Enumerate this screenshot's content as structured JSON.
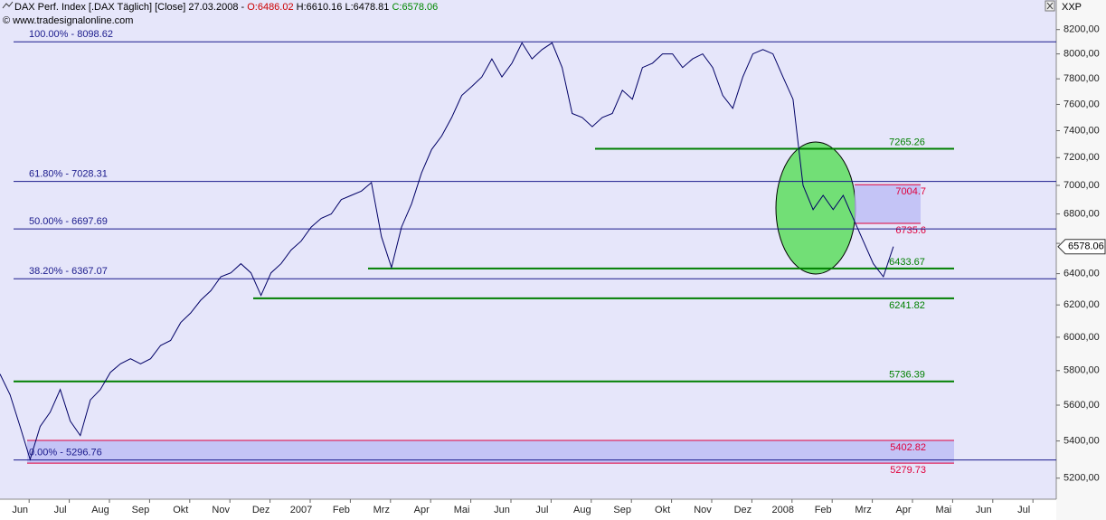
{
  "chart_data": {
    "type": "line",
    "title": "DAX Perf. Index [.DAX Täglich] [Close] 27.03.2008 -",
    "ohlc": [
      {
        "text": "O:6486.02",
        "color": "#cc0000"
      },
      {
        "text": "H:6610.16",
        "color": "#000000"
      },
      {
        "text": "L:6478.81",
        "color": "#000000"
      },
      {
        "text": "C:6578.06",
        "color": "#008800"
      }
    ],
    "watermark": "© www.tradesignalonline.com",
    "axis_unit": "XXP",
    "price_tag": 6578.06,
    "log_scale": true,
    "color": "#000066",
    "categories": [
      null,
      null,
      "Jun",
      null,
      null,
      null,
      "Jul",
      null,
      null,
      null,
      "Aug",
      null,
      null,
      null,
      "Sep",
      null,
      null,
      null,
      "Okt",
      null,
      null,
      null,
      "Nov",
      null,
      null,
      null,
      "Dez",
      null,
      null,
      null,
      "2007",
      null,
      null,
      null,
      "Feb",
      null,
      null,
      null,
      "Mrz",
      null,
      null,
      null,
      "Apr",
      null,
      null,
      null,
      "Mai",
      null,
      null,
      null,
      "Jun",
      null,
      null,
      null,
      "Jul",
      null,
      null,
      null,
      "Aug",
      null,
      null,
      null,
      "Sep",
      null,
      null,
      null,
      "Okt",
      null,
      null,
      null,
      "Nov",
      null,
      null,
      null,
      "Dez",
      null,
      null,
      null,
      "2008",
      null,
      null,
      null,
      "Feb",
      null,
      null,
      null,
      "Mrz",
      null,
      null,
      null,
      "Apr",
      null,
      null,
      null,
      "Mai",
      null,
      null,
      null,
      "Jun",
      null,
      null,
      null,
      "Jul",
      null,
      null,
      null
    ],
    "values": [
      5780,
      5660,
      5480,
      5300,
      5480,
      5560,
      5690,
      5510,
      5430,
      5630,
      5690,
      5790,
      5840,
      5870,
      5840,
      5870,
      5950,
      5980,
      6090,
      6150,
      6230,
      6290,
      6380,
      6405,
      6465,
      6405,
      6260,
      6405,
      6465,
      6555,
      6615,
      6710,
      6770,
      6800,
      6900,
      6930,
      6960,
      7020,
      6645,
      6440,
      6710,
      6870,
      7090,
      7260,
      7360,
      7500,
      7670,
      7740,
      7815,
      7960,
      7815,
      7925,
      8090,
      7960,
      8035,
      8090,
      7890,
      7530,
      7500,
      7430,
      7500,
      7530,
      7710,
      7640,
      7890,
      7925,
      8000,
      8000,
      7890,
      7960,
      8000,
      7890,
      7670,
      7570,
      7815,
      8000,
      8035,
      8000,
      7815,
      7640,
      7000,
      6830,
      6930,
      6830,
      6930,
      6770,
      6615,
      6465,
      6380,
      6578.06,
      null,
      null,
      null,
      null,
      null,
      null,
      null,
      null,
      null,
      null,
      null,
      null,
      null,
      null,
      null,
      null
    ],
    "ylim": [
      5090,
      8450
    ],
    "yticks": [
      {
        "value": 5200,
        "label": "5200,00"
      },
      {
        "value": 5400,
        "label": "5400,00"
      },
      {
        "value": 5600,
        "label": "5600,00"
      },
      {
        "value": 5800,
        "label": "5800,00"
      },
      {
        "value": 6000,
        "label": "6000,00"
      },
      {
        "value": 6200,
        "label": "6200,00"
      },
      {
        "value": 6400,
        "label": "6400,00"
      },
      {
        "value": 6600,
        "label": "6600,00"
      },
      {
        "value": 6800,
        "label": "6800,00"
      },
      {
        "value": 7000,
        "label": "7000,00"
      },
      {
        "value": 7200,
        "label": "7200,00"
      },
      {
        "value": 7400,
        "label": "7400,00"
      },
      {
        "value": 7600,
        "label": "7600,00"
      },
      {
        "value": 7800,
        "label": "7800,00"
      },
      {
        "value": 8000,
        "label": "8000,00"
      },
      {
        "value": 8200,
        "label": "8200,00"
      }
    ],
    "fib_color": "#1a1a8c",
    "fib_levels": [
      {
        "value": 8098.62,
        "label": "100.00% - 8098.62"
      },
      {
        "value": 7028.31,
        "label": "61.80% - 7028.31"
      },
      {
        "value": 6697.69,
        "label": "50.00% - 6697.69"
      },
      {
        "value": 6367.07,
        "label": "38.20% - 6367.07"
      },
      {
        "value": 5296.76,
        "label": "0.00% - 5296.76"
      }
    ],
    "support_color": "#008000",
    "support_levels": [
      7265.26,
      6433.67,
      6241.82,
      5736.39
    ],
    "zone_color": "#e0003c",
    "zones": [
      [
        7004.7,
        6735.6
      ],
      [
        5402.82,
        5279.73
      ]
    ]
  }
}
